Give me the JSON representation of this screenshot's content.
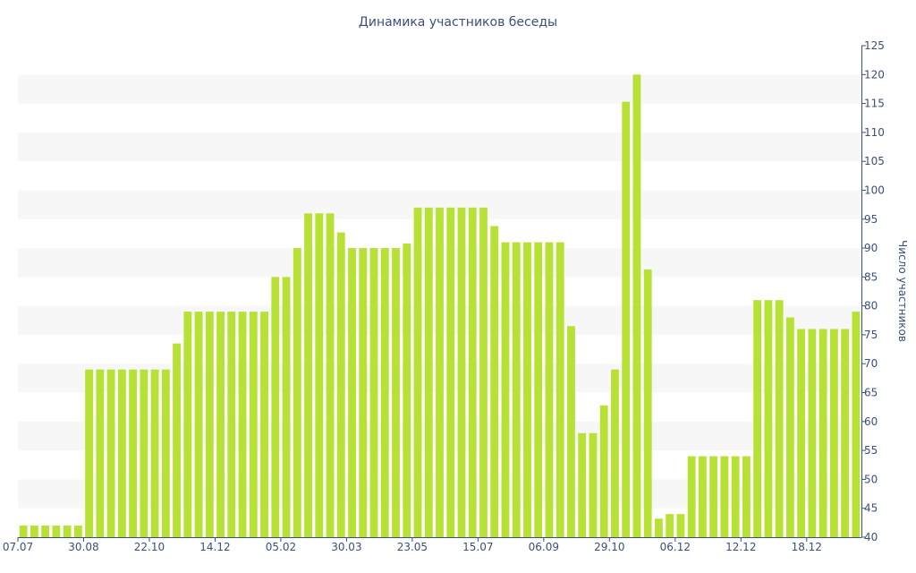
{
  "chart_data": {
    "type": "bar",
    "title": "Динамика участников беседы",
    "xlabel": "",
    "ylabel": "Число участников",
    "ylim": [
      40,
      125
    ],
    "y_ticks": [
      40,
      45,
      50,
      55,
      60,
      65,
      70,
      75,
      80,
      85,
      90,
      95,
      100,
      105,
      110,
      115,
      120,
      125
    ],
    "y_axis_side": "right",
    "grid": "alternating horizontal bands",
    "x_tick_labels": [
      "07.07",
      "30.08",
      "22.10",
      "14.12",
      "05.02",
      "30.03",
      "23.05",
      "15.07",
      "06.09",
      "29.10",
      "06.12",
      "12.12",
      "18.12"
    ],
    "values": [
      42,
      42,
      42,
      42,
      42,
      42,
      69,
      69,
      69,
      69,
      69,
      69,
      69,
      69,
      73.5,
      79,
      79,
      79,
      79,
      79,
      79,
      79,
      79,
      85,
      85,
      90,
      96,
      96,
      96,
      92.7,
      90,
      90,
      90,
      90,
      90,
      90.8,
      97,
      97,
      97,
      97,
      97,
      97,
      97,
      93.8,
      91,
      91,
      91,
      91,
      91,
      91,
      76.5,
      58,
      58,
      62.8,
      69,
      115.3,
      120,
      86.3,
      43.2,
      44,
      44,
      54,
      54,
      54,
      54,
      54,
      54,
      81,
      81,
      81,
      78,
      76,
      76,
      76,
      76,
      76,
      79
    ],
    "colors": {
      "bar": "#b7e134",
      "band": "#f7f7f7",
      "text": "#3a4f7a",
      "axis": "#3a4f7a"
    }
  }
}
